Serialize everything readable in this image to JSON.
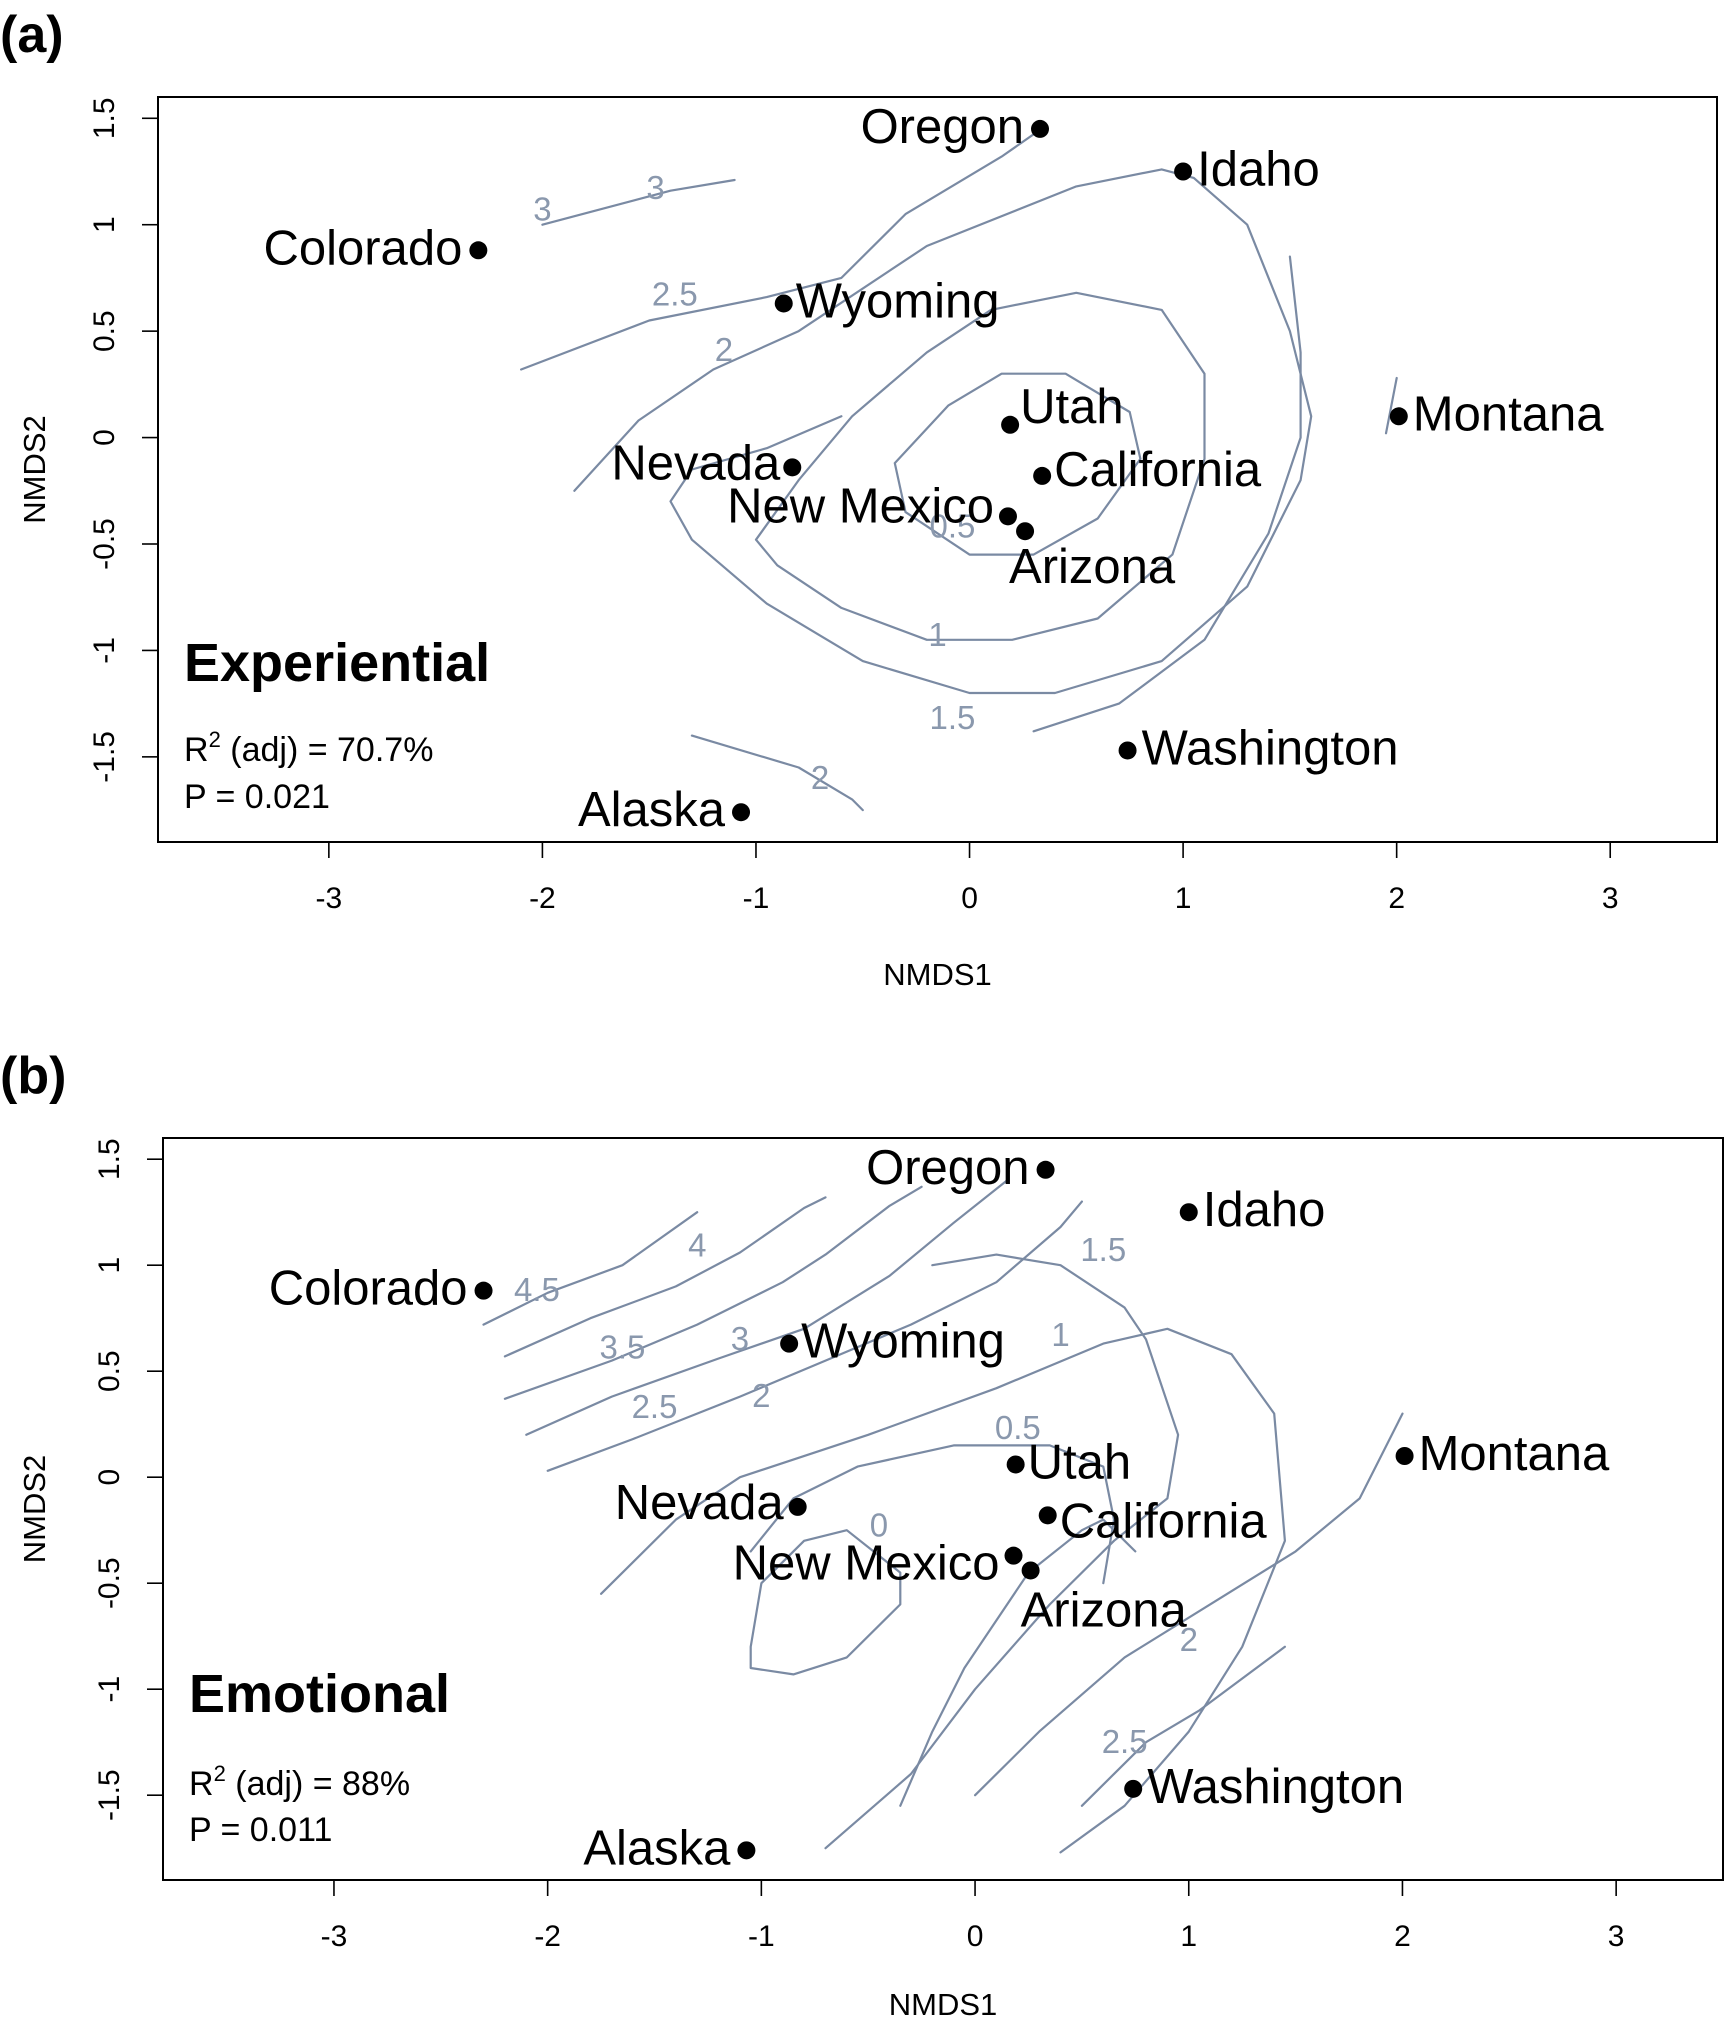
{
  "chart_data": [
    {
      "type": "scatter",
      "panel_label": "(a)",
      "panel_title": "Experiential",
      "stat_r2_prefix": "R",
      "stat_r2_sup": "2",
      "stat_r2_suffix": " (adj) = 70.7%",
      "stat_p": "P = 0.021",
      "xlabel": "NMDS1",
      "ylabel": "NMDS2",
      "xlim": [
        -3.8,
        3.5
      ],
      "ylim": [
        -1.9,
        1.6
      ],
      "xticks": [
        "-3",
        "-2",
        "-1",
        "0",
        "1",
        "2",
        "3"
      ],
      "yticks": [
        "-1.5",
        "-1",
        "-0.5",
        "0",
        "0.5",
        "1",
        "1.5"
      ],
      "points": [
        {
          "name": "Oregon",
          "x": 0.33,
          "y": 1.45
        },
        {
          "name": "Idaho",
          "x": 1.0,
          "y": 1.25
        },
        {
          "name": "Colorado",
          "x": -2.3,
          "y": 0.88
        },
        {
          "name": "Wyoming",
          "x": -0.87,
          "y": 0.63
        },
        {
          "name": "Utah",
          "x": 0.19,
          "y": 0.06
        },
        {
          "name": "Montana",
          "x": 2.01,
          "y": 0.1
        },
        {
          "name": "Nevada",
          "x": -0.83,
          "y": -0.14
        },
        {
          "name": "California",
          "x": 0.34,
          "y": -0.18
        },
        {
          "name": "New Mexico",
          "x": 0.18,
          "y": -0.37
        },
        {
          "name": "Arizona",
          "x": 0.26,
          "y": -0.44
        },
        {
          "name": "Washington",
          "x": 0.74,
          "y": -1.47
        },
        {
          "name": "Alaska",
          "x": -1.07,
          "y": -1.76
        }
      ],
      "contour_labels": [
        "3",
        "3",
        "2.5",
        "2",
        "0.5",
        "1",
        "1.5",
        "2"
      ]
    },
    {
      "type": "scatter",
      "panel_label": "(b)",
      "panel_title": "Emotional",
      "stat_r2_prefix": "R",
      "stat_r2_sup": "2",
      "stat_r2_suffix": " (adj) = 88%",
      "stat_p": "P = 0.011",
      "xlabel": "NMDS1",
      "ylabel": "NMDS2",
      "xlim": [
        -3.8,
        3.5
      ],
      "ylim": [
        -1.9,
        1.6
      ],
      "xticks": [
        "-3",
        "-2",
        "-1",
        "0",
        "1",
        "2",
        "3"
      ],
      "yticks": [
        "-1.5",
        "-1",
        "-0.5",
        "0",
        "0.5",
        "1",
        "1.5"
      ],
      "points": [
        {
          "name": "Oregon",
          "x": 0.33,
          "y": 1.45
        },
        {
          "name": "Idaho",
          "x": 1.0,
          "y": 1.25
        },
        {
          "name": "Colorado",
          "x": -2.3,
          "y": 0.88
        },
        {
          "name": "Wyoming",
          "x": -0.87,
          "y": 0.63
        },
        {
          "name": "Utah",
          "x": 0.19,
          "y": 0.06
        },
        {
          "name": "Montana",
          "x": 2.01,
          "y": 0.1
        },
        {
          "name": "Nevada",
          "x": -0.83,
          "y": -0.14
        },
        {
          "name": "California",
          "x": 0.34,
          "y": -0.18
        },
        {
          "name": "New Mexico",
          "x": 0.18,
          "y": -0.37
        },
        {
          "name": "Arizona",
          "x": 0.26,
          "y": -0.44
        },
        {
          "name": "Washington",
          "x": 0.74,
          "y": -1.47
        },
        {
          "name": "Alaska",
          "x": -1.07,
          "y": -1.76
        }
      ],
      "contour_labels": [
        "4.5",
        "4",
        "3.5",
        "3",
        "2.5",
        "2",
        "1.5",
        "1",
        "0.5",
        "0",
        "2",
        "2.5"
      ]
    }
  ]
}
